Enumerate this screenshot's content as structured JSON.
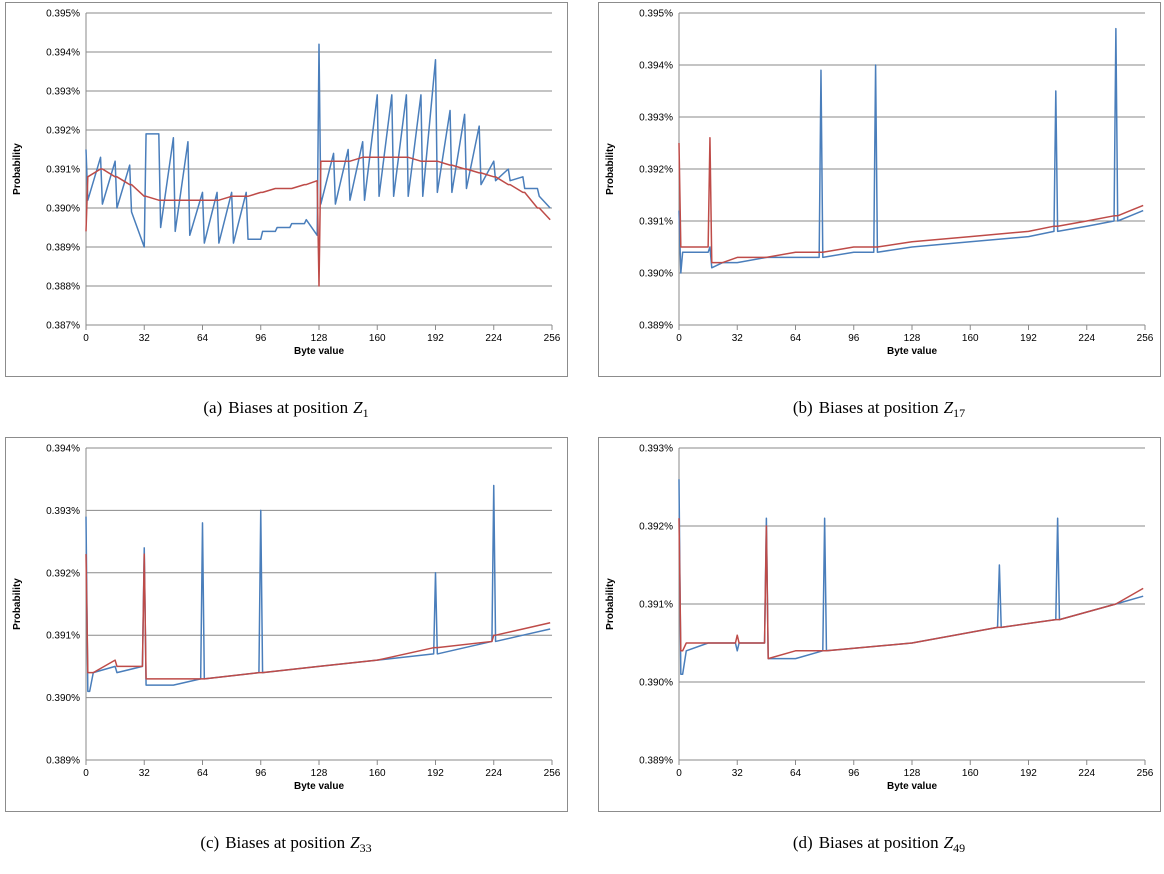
{
  "chart_data": [
    {
      "type": "line",
      "y_label": "Probability",
      "x_label": "Byte value",
      "caption_label": "(a)",
      "caption_text": "Biases at position",
      "caption_symbol": "Z",
      "caption_subscript": "1",
      "xlim": [
        0,
        256
      ],
      "xticks": [
        0,
        32,
        64,
        96,
        128,
        160,
        192,
        224,
        256
      ],
      "ylim": [
        0.387,
        0.395
      ],
      "yticks": [
        {
          "value": 0.387,
          "label": "0.387%"
        },
        {
          "value": 0.388,
          "label": "0.388%"
        },
        {
          "value": 0.389,
          "label": "0.389%"
        },
        {
          "value": 0.39,
          "label": "0.390%"
        },
        {
          "value": 0.391,
          "label": "0.391%"
        },
        {
          "value": 0.392,
          "label": "0.392%"
        },
        {
          "value": 0.393,
          "label": "0.393%"
        },
        {
          "value": 0.394,
          "label": "0.394%"
        },
        {
          "value": 0.395,
          "label": "0.395%"
        }
      ],
      "grid": true,
      "x": [
        0,
        1,
        8,
        9,
        16,
        17,
        24,
        25,
        32,
        33,
        40,
        41,
        48,
        49,
        56,
        57,
        64,
        65,
        72,
        73,
        80,
        81,
        88,
        89,
        96,
        97,
        104,
        105,
        112,
        113,
        120,
        121,
        127,
        128,
        129,
        136,
        137,
        144,
        145,
        152,
        153,
        160,
        161,
        168,
        169,
        176,
        177,
        184,
        185,
        192,
        193,
        200,
        201,
        208,
        209,
        216,
        217,
        224,
        225,
        232,
        233,
        240,
        241,
        248,
        249,
        255
      ],
      "series": [
        {
          "color": "#4a7ebb",
          "values": [
            0.3915,
            0.3902,
            0.3913,
            0.3901,
            0.3912,
            0.39,
            0.3911,
            0.3899,
            0.389,
            0.3919,
            0.3919,
            0.3895,
            0.3918,
            0.3894,
            0.3917,
            0.3893,
            0.3904,
            0.3891,
            0.3904,
            0.3891,
            0.3904,
            0.3891,
            0.3904,
            0.3892,
            0.3892,
            0.3894,
            0.3894,
            0.3895,
            0.3895,
            0.3896,
            0.3896,
            0.3897,
            0.3893,
            0.3942,
            0.3901,
            0.3914,
            0.3901,
            0.3915,
            0.3902,
            0.3917,
            0.3902,
            0.3929,
            0.3903,
            0.3929,
            0.3903,
            0.3929,
            0.3903,
            0.3929,
            0.3903,
            0.3938,
            0.3904,
            0.3925,
            0.3904,
            0.3924,
            0.3905,
            0.3921,
            0.3906,
            0.3912,
            0.3907,
            0.391,
            0.3907,
            0.3908,
            0.3905,
            0.3905,
            0.3903,
            0.39
          ]
        },
        {
          "color": "#be4b48",
          "values": [
            0.3894,
            0.3908,
            0.391,
            0.391,
            0.3908,
            0.3908,
            0.3906,
            0.3906,
            0.3903,
            0.3903,
            0.3902,
            0.3902,
            0.3902,
            0.3902,
            0.3902,
            0.3902,
            0.3902,
            0.3902,
            0.3902,
            0.3902,
            0.3903,
            0.3903,
            0.3903,
            0.3903,
            0.3904,
            0.3904,
            0.3905,
            0.3905,
            0.3905,
            0.3905,
            0.3906,
            0.3906,
            0.3907,
            0.388,
            0.3912,
            0.3912,
            0.3912,
            0.3912,
            0.3912,
            0.3913,
            0.3913,
            0.3913,
            0.3913,
            0.3913,
            0.3913,
            0.3913,
            0.3913,
            0.3912,
            0.3912,
            0.3912,
            0.3912,
            0.3911,
            0.3911,
            0.391,
            0.391,
            0.3909,
            0.3909,
            0.3908,
            0.3908,
            0.3906,
            0.3906,
            0.3904,
            0.3904,
            0.39,
            0.39,
            0.3897
          ]
        }
      ]
    },
    {
      "type": "line",
      "y_label": "Probability",
      "x_label": "Byte value",
      "caption_label": "(b)",
      "caption_text": "Biases at position",
      "caption_symbol": "Z",
      "caption_subscript": "17",
      "xlim": [
        0,
        256
      ],
      "xticks": [
        0,
        32,
        64,
        96,
        128,
        160,
        192,
        224,
        256
      ],
      "ylim": [
        0.389,
        0.395
      ],
      "yticks": [
        {
          "value": 0.389,
          "label": "0.389%"
        },
        {
          "value": 0.39,
          "label": "0.390%"
        },
        {
          "value": 0.391,
          "label": "0.391%"
        },
        {
          "value": 0.392,
          "label": "0.392%"
        },
        {
          "value": 0.393,
          "label": "0.393%"
        },
        {
          "value": 0.394,
          "label": "0.394%"
        },
        {
          "value": 0.395,
          "label": "0.395%"
        }
      ],
      "grid": true,
      "x": [
        0,
        1,
        2,
        4,
        8,
        16,
        17,
        18,
        24,
        32,
        48,
        64,
        77,
        78,
        79,
        96,
        107,
        108,
        109,
        128,
        160,
        192,
        206,
        207,
        208,
        224,
        239,
        240,
        241,
        248,
        255
      ],
      "series": [
        {
          "color": "#4a7ebb",
          "values": [
            0.3912,
            0.39,
            0.3904,
            0.3904,
            0.3904,
            0.3904,
            0.3905,
            0.3901,
            0.3902,
            0.3902,
            0.3903,
            0.3903,
            0.3903,
            0.3939,
            0.3903,
            0.3904,
            0.3904,
            0.394,
            0.3904,
            0.3905,
            0.3906,
            0.3907,
            0.3908,
            0.3935,
            0.3908,
            0.3909,
            0.391,
            0.3947,
            0.391,
            0.3911,
            0.3912
          ]
        },
        {
          "color": "#be4b48",
          "values": [
            0.3925,
            0.3905,
            0.3905,
            0.3905,
            0.3905,
            0.3905,
            0.3926,
            0.3902,
            0.3902,
            0.3903,
            0.3903,
            0.3904,
            0.3904,
            0.3904,
            0.3904,
            0.3905,
            0.3905,
            0.3905,
            0.3905,
            0.3906,
            0.3907,
            0.3908,
            0.3909,
            0.3909,
            0.3909,
            0.391,
            0.3911,
            0.3911,
            0.3911,
            0.3912,
            0.3913
          ]
        }
      ]
    },
    {
      "type": "line",
      "y_label": "Probability",
      "x_label": "Byte value",
      "caption_label": "(c)",
      "caption_text": "Biases at position",
      "caption_symbol": "Z",
      "caption_subscript": "33",
      "xlim": [
        0,
        256
      ],
      "xticks": [
        0,
        32,
        64,
        96,
        128,
        160,
        192,
        224,
        256
      ],
      "ylim": [
        0.389,
        0.394
      ],
      "yticks": [
        {
          "value": 0.389,
          "label": "0.389%"
        },
        {
          "value": 0.39,
          "label": "0.390%"
        },
        {
          "value": 0.391,
          "label": "0.391%"
        },
        {
          "value": 0.392,
          "label": "0.392%"
        },
        {
          "value": 0.393,
          "label": "0.393%"
        },
        {
          "value": 0.394,
          "label": "0.394%"
        }
      ],
      "grid": true,
      "x": [
        0,
        1,
        2,
        4,
        16,
        17,
        31,
        32,
        33,
        48,
        63,
        64,
        65,
        95,
        96,
        97,
        128,
        160,
        191,
        192,
        193,
        223,
        224,
        225,
        240,
        255
      ],
      "series": [
        {
          "color": "#4a7ebb",
          "values": [
            0.3929,
            0.3901,
            0.3901,
            0.3904,
            0.3905,
            0.3904,
            0.3905,
            0.3924,
            0.3902,
            0.3902,
            0.3903,
            0.3928,
            0.3903,
            0.3904,
            0.393,
            0.3904,
            0.3905,
            0.3906,
            0.3907,
            0.392,
            0.3907,
            0.3909,
            0.3934,
            0.3909,
            0.391,
            0.3911
          ]
        },
        {
          "color": "#be4b48",
          "values": [
            0.3923,
            0.3904,
            0.3904,
            0.3904,
            0.3906,
            0.3905,
            0.3905,
            0.3923,
            0.3903,
            0.3903,
            0.3903,
            0.3903,
            0.3903,
            0.3904,
            0.3904,
            0.3904,
            0.3905,
            0.3906,
            0.3908,
            0.3908,
            0.3908,
            0.3909,
            0.391,
            0.391,
            0.3911,
            0.3912
          ]
        }
      ]
    },
    {
      "type": "line",
      "y_label": "Probability",
      "x_label": "Byte value",
      "caption_label": "(d)",
      "caption_text": "Biases at position",
      "caption_symbol": "Z",
      "caption_subscript": "49",
      "xlim": [
        0,
        256
      ],
      "xticks": [
        0,
        32,
        64,
        96,
        128,
        160,
        192,
        224,
        256
      ],
      "ylim": [
        0.389,
        0.393
      ],
      "yticks": [
        {
          "value": 0.389,
          "label": "0.389%"
        },
        {
          "value": 0.39,
          "label": "0.390%"
        },
        {
          "value": 0.391,
          "label": "0.391%"
        },
        {
          "value": 0.392,
          "label": "0.392%"
        },
        {
          "value": 0.393,
          "label": "0.393%"
        }
      ],
      "grid": true,
      "x": [
        0,
        1,
        2,
        4,
        16,
        31,
        32,
        33,
        47,
        48,
        49,
        64,
        79,
        80,
        81,
        128,
        175,
        176,
        177,
        207,
        208,
        209,
        240,
        255
      ],
      "series": [
        {
          "color": "#4a7ebb",
          "values": [
            0.3926,
            0.3901,
            0.3901,
            0.3904,
            0.3905,
            0.3905,
            0.3904,
            0.3905,
            0.3905,
            0.3921,
            0.3903,
            0.3903,
            0.3904,
            0.3921,
            0.3904,
            0.3905,
            0.3907,
            0.3915,
            0.3907,
            0.3908,
            0.3921,
            0.3908,
            0.391,
            0.3911
          ]
        },
        {
          "color": "#be4b48",
          "values": [
            0.3921,
            0.3904,
            0.3904,
            0.3905,
            0.3905,
            0.3905,
            0.3906,
            0.3905,
            0.3905,
            0.392,
            0.3903,
            0.3904,
            0.3904,
            0.3904,
            0.3904,
            0.3905,
            0.3907,
            0.3907,
            0.3907,
            0.3908,
            0.3908,
            0.3908,
            0.391,
            0.3912
          ]
        }
      ]
    }
  ]
}
